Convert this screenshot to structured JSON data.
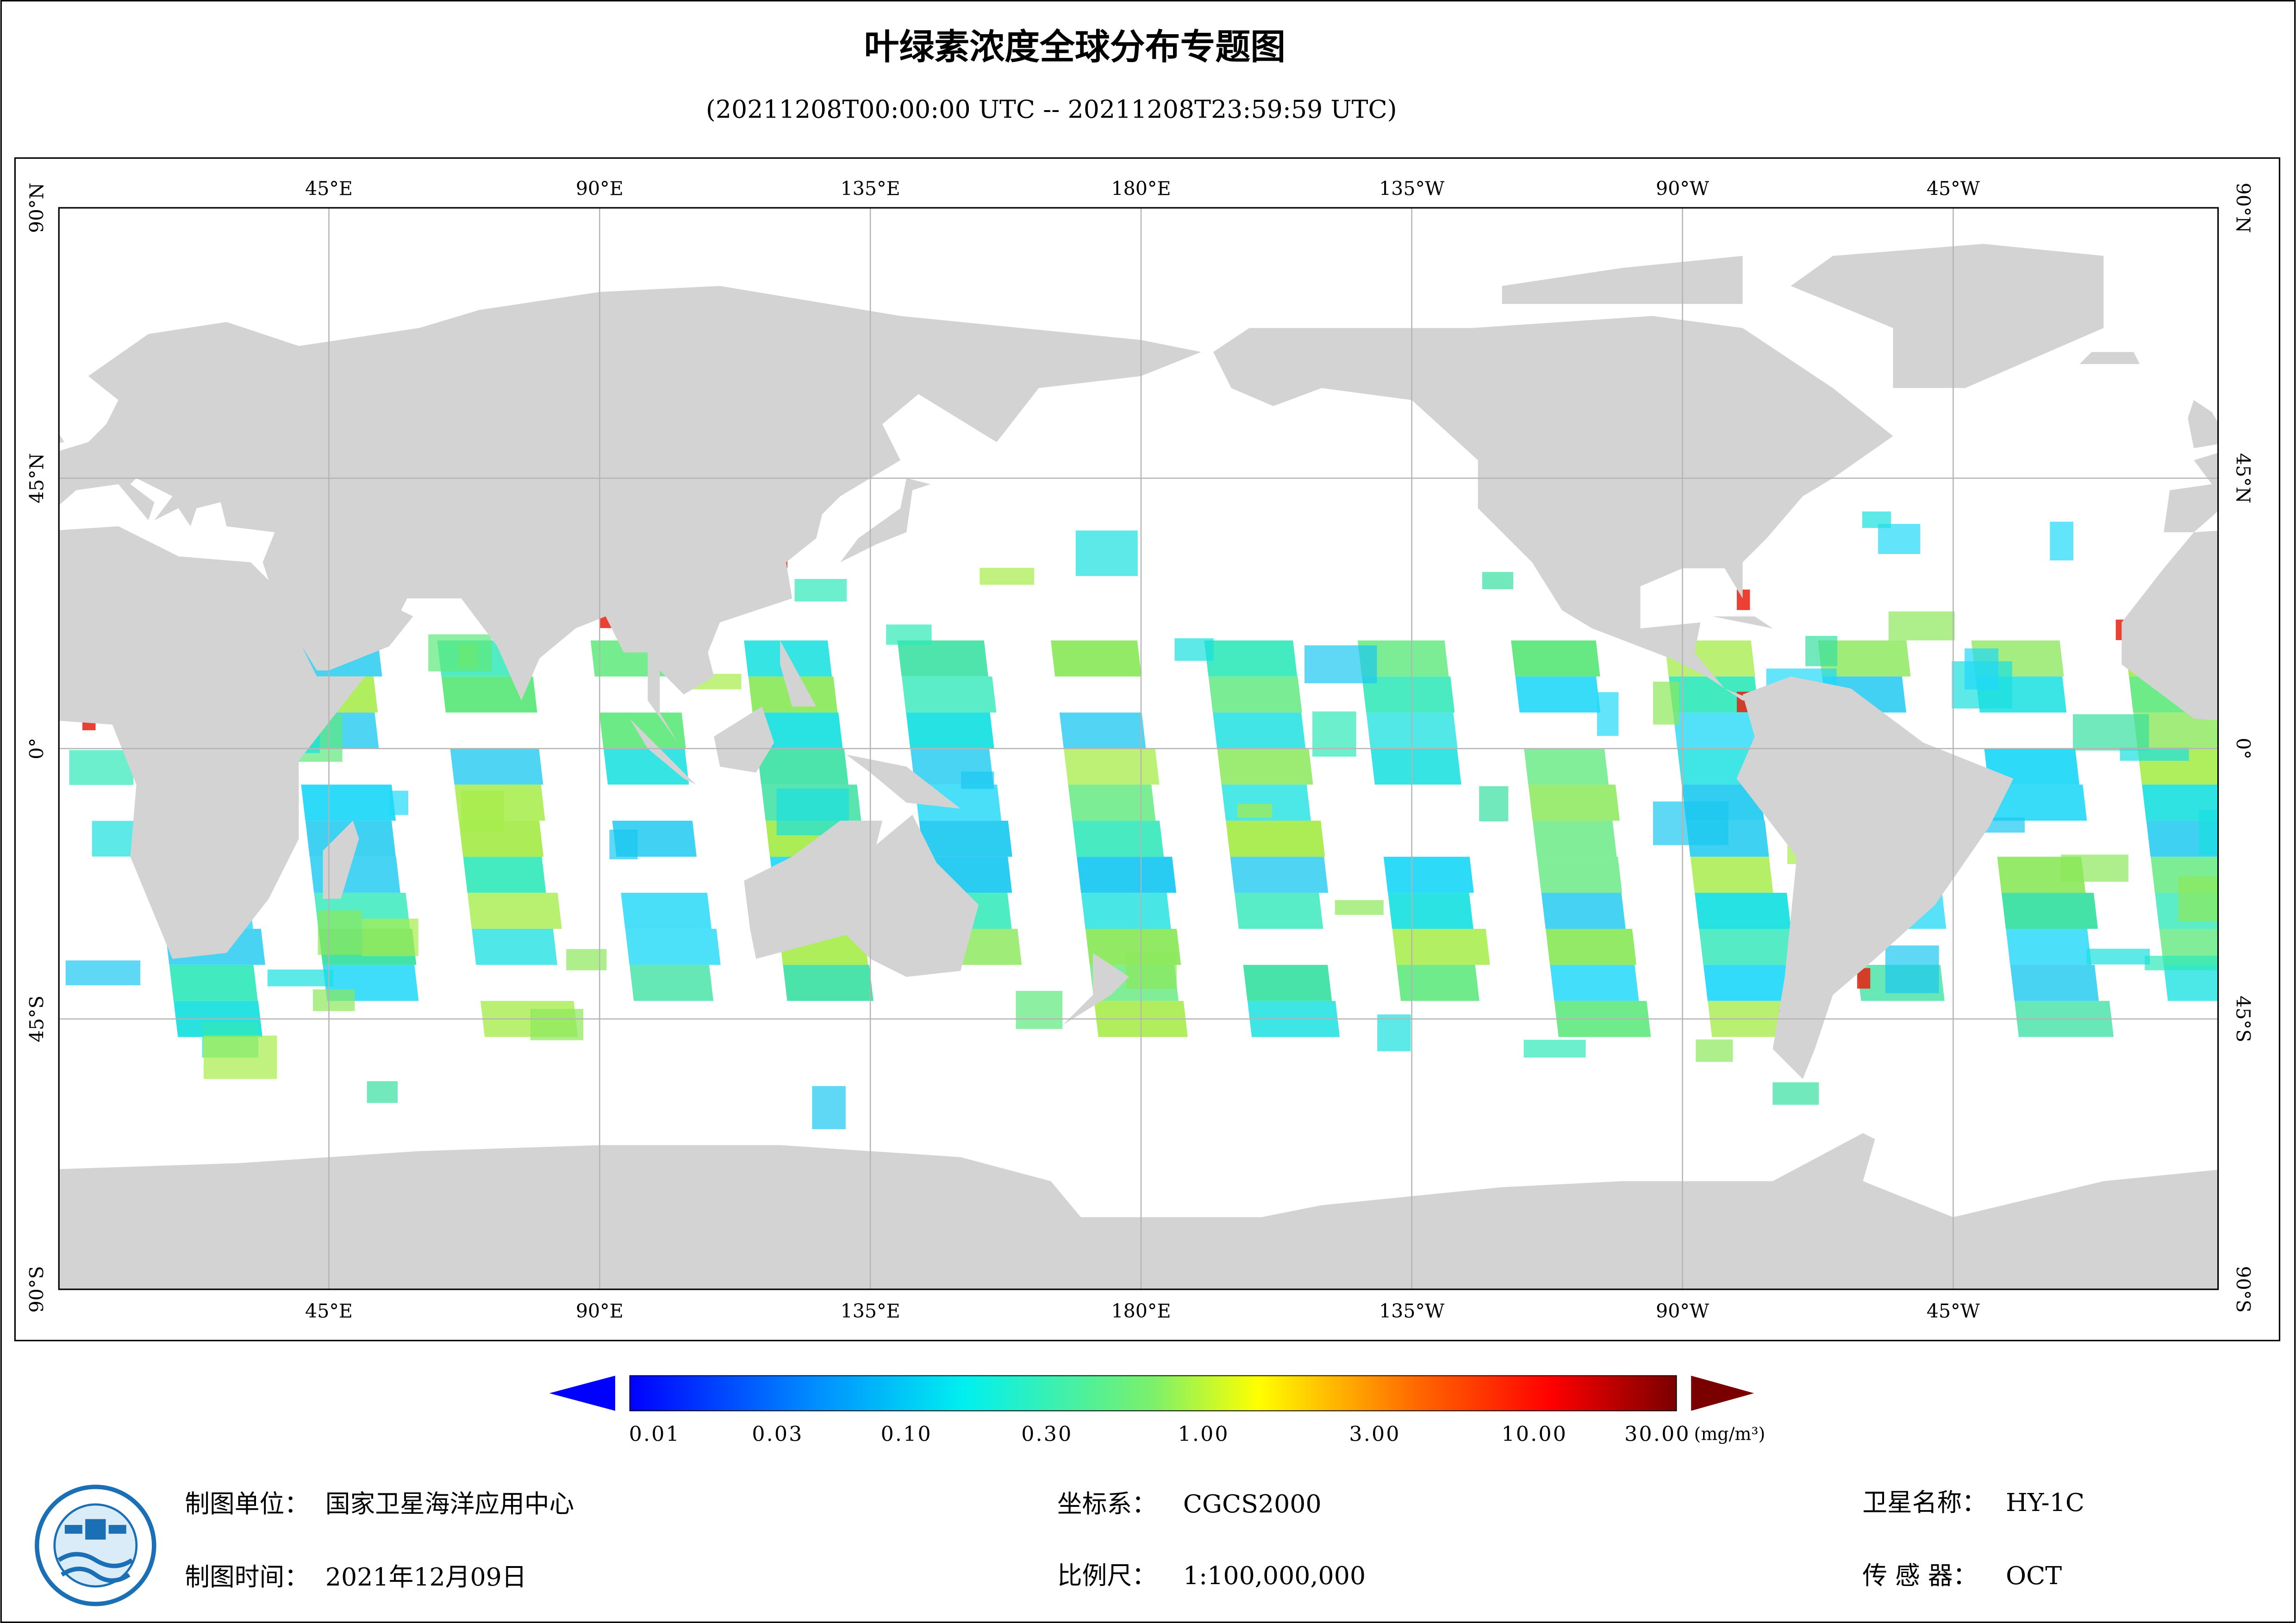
{
  "title": "叶绿素浓度全球分布专题图",
  "subtitle": "(20211208T00:00:00 UTC -- 20211208T23:59:59 UTC)",
  "map": {
    "lon_labels": [
      "45°E",
      "90°E",
      "135°E",
      "180°E",
      "135°W",
      "90°W",
      "45°W"
    ],
    "lat_labels": [
      "90°N",
      "45°N",
      "0°",
      "45°S",
      "90°S"
    ]
  },
  "legend": {
    "labels": [
      "0.01",
      "0.03",
      "0.10",
      "0.30",
      "1.00",
      "3.00",
      "10.00",
      "30.00"
    ],
    "unit": "(mg/m³)"
  },
  "footer": [
    {
      "label": "制图单位：",
      "value": "国家卫星海洋应用中心"
    },
    {
      "label": "坐标系：",
      "value": "CGCS2000"
    },
    {
      "label": "卫星名称：",
      "value": "HY-1C"
    },
    {
      "label": "制图时间：",
      "value": "2021年12月09日"
    },
    {
      "label": "比例尺：",
      "value": "1:100,000,000"
    },
    {
      "label": "传 感 器：",
      "value": "OCT"
    }
  ]
}
